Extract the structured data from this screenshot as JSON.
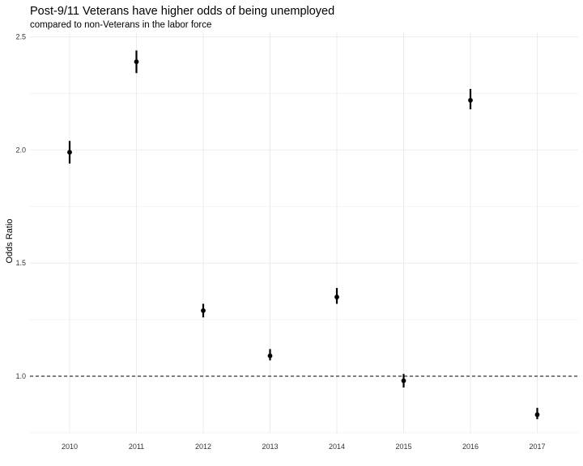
{
  "chart_data": {
    "type": "scatter",
    "title": "Post-9/11 Veterans have higher odds of being unemployed",
    "subtitle": "compared to non-Veterans in the labor force",
    "xlabel": "",
    "ylabel": "Odds Ratio",
    "categories": [
      "2010",
      "2011",
      "2012",
      "2013",
      "2014",
      "2015",
      "2016",
      "2017"
    ],
    "points": [
      {
        "x": "2010",
        "y": 1.99,
        "ci_low": 1.94,
        "ci_high": 2.04
      },
      {
        "x": "2011",
        "y": 2.39,
        "ci_low": 2.34,
        "ci_high": 2.44
      },
      {
        "x": "2012",
        "y": 1.29,
        "ci_low": 1.26,
        "ci_high": 1.32
      },
      {
        "x": "2013",
        "y": 1.09,
        "ci_low": 1.07,
        "ci_high": 1.12
      },
      {
        "x": "2014",
        "y": 1.35,
        "ci_low": 1.32,
        "ci_high": 1.39
      },
      {
        "x": "2015",
        "y": 0.98,
        "ci_low": 0.95,
        "ci_high": 1.01
      },
      {
        "x": "2016",
        "y": 2.22,
        "ci_low": 2.18,
        "ci_high": 2.27
      },
      {
        "x": "2017",
        "y": 0.83,
        "ci_low": 0.81,
        "ci_high": 0.86
      }
    ],
    "yticks": [
      "1.0",
      "1.5",
      "2.0",
      "2.5"
    ],
    "ytick_values": [
      1.0,
      1.5,
      2.0,
      2.5
    ],
    "ylim": [
      0.75,
      2.5
    ],
    "reference_line": {
      "y": 1.0,
      "style": "dashed",
      "color": "#000000"
    },
    "grid": true,
    "legend": "none"
  }
}
